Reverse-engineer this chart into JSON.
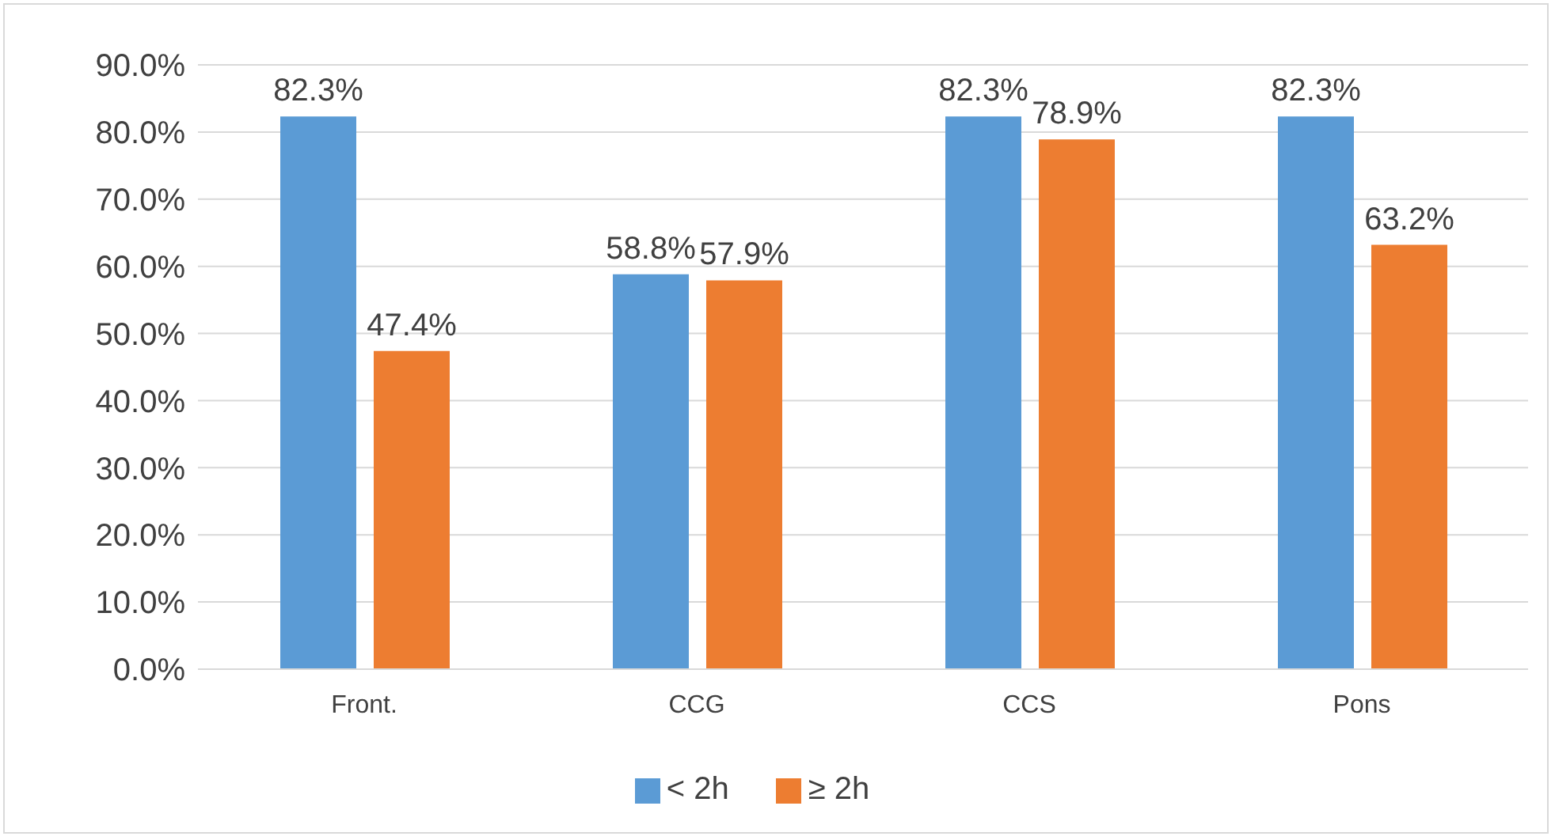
{
  "chart_data": {
    "type": "bar",
    "categories": [
      "Front.",
      "CCG",
      "CCS",
      "Pons"
    ],
    "series": [
      {
        "name": "< 2h",
        "color": "#5b9bd5",
        "values": [
          82.3,
          58.8,
          82.3,
          82.3
        ],
        "value_labels": [
          "82.3%",
          "58.8%",
          "82.3%",
          "82.3%"
        ]
      },
      {
        "name": "≥ 2h",
        "color": "#ed7d31",
        "values": [
          47.4,
          57.9,
          78.9,
          63.2
        ],
        "value_labels": [
          "47.4%",
          "57.9%",
          "78.9%",
          "63.2%"
        ]
      }
    ],
    "ylim": [
      0,
      90
    ],
    "yticks": [
      {
        "value": 0,
        "label": "0.0%"
      },
      {
        "value": 10,
        "label": "10.0%"
      },
      {
        "value": 20,
        "label": "20.0%"
      },
      {
        "value": 30,
        "label": "30.0%"
      },
      {
        "value": 40,
        "label": "40.0%"
      },
      {
        "value": 50,
        "label": "50.0%"
      },
      {
        "value": 60,
        "label": "60.0%"
      },
      {
        "value": 70,
        "label": "70.0%"
      },
      {
        "value": 80,
        "label": "80.0%"
      },
      {
        "value": 90,
        "label": "90.0%"
      }
    ],
    "grid": "y",
    "legend": "bottom"
  }
}
